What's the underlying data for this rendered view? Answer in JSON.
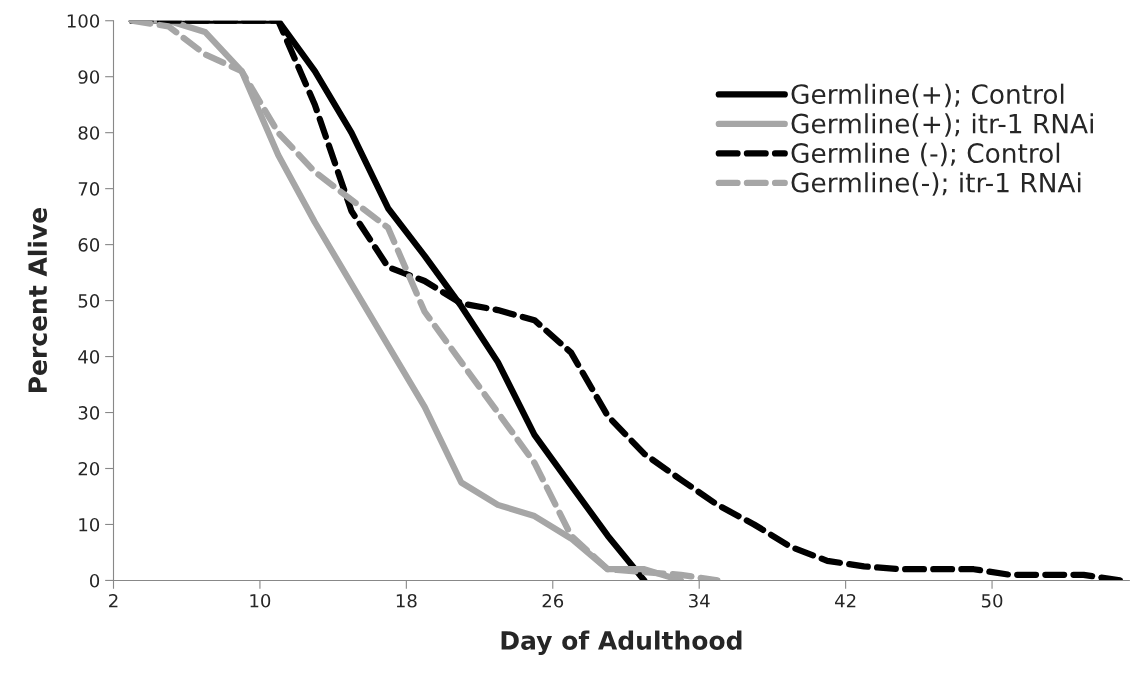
{
  "chart_data": {
    "type": "line",
    "xlabel": "Day of Adulthood",
    "ylabel": "Percent Alive",
    "xlim": [
      2,
      57.5
    ],
    "xticks": [
      2,
      10,
      18,
      26,
      34,
      42,
      50
    ],
    "ylim": [
      0,
      100
    ],
    "yticks": [
      0,
      10,
      20,
      30,
      40,
      50,
      60,
      70,
      80,
      90,
      100
    ],
    "grid": false,
    "legend": "top right",
    "marker": "none",
    "series": [
      {
        "name": "Germline(+); Control",
        "color": "#000000",
        "line_style": "solid",
        "x": [
          3,
          5,
          7,
          9,
          11,
          13,
          15,
          17,
          19,
          21,
          23,
          25,
          27,
          29,
          31
        ],
        "values": [
          100,
          100,
          100,
          100,
          100,
          91,
          80,
          66.5,
          58,
          49,
          39,
          26,
          17,
          8,
          0
        ]
      },
      {
        "name": "Germline(+); itr-1 RNAi",
        "color": "#a6a6a6",
        "line_style": "solid",
        "x": [
          3,
          5,
          7,
          9,
          11,
          13,
          15,
          17,
          19,
          21,
          23,
          25,
          27,
          29,
          31,
          33
        ],
        "values": [
          100,
          100,
          98,
          91,
          76,
          64,
          53,
          42,
          31,
          17.5,
          13.5,
          11.5,
          7.5,
          2,
          2,
          0
        ]
      },
      {
        "name": "Germline (-); Control",
        "color": "#000000",
        "line_style": "dashed",
        "x": [
          3,
          5,
          7,
          9,
          11,
          13,
          15,
          17,
          19,
          21,
          23,
          25,
          27,
          29,
          31,
          33,
          35,
          37,
          39,
          41,
          43,
          45,
          47,
          49,
          51,
          53,
          55,
          57
        ],
        "values": [
          100,
          100,
          100,
          100,
          100,
          85,
          66,
          56,
          53.5,
          49.5,
          48.3,
          46.5,
          40.7,
          29.4,
          22.6,
          18,
          13.5,
          10,
          6,
          3.5,
          2.5,
          2,
          2,
          2,
          1,
          1,
          1,
          0
        ]
      },
      {
        "name": "Germline(-); itr-1 RNAi",
        "color": "#a6a6a6",
        "line_style": "dashed",
        "x": [
          3,
          5,
          7,
          9,
          11,
          13,
          15,
          17,
          19,
          21,
          23,
          25,
          27,
          29,
          31,
          33,
          35
        ],
        "values": [
          100,
          99,
          94,
          91,
          80,
          73,
          68,
          63,
          48,
          39,
          30,
          21,
          8,
          2,
          1.5,
          1,
          0
        ]
      }
    ]
  }
}
